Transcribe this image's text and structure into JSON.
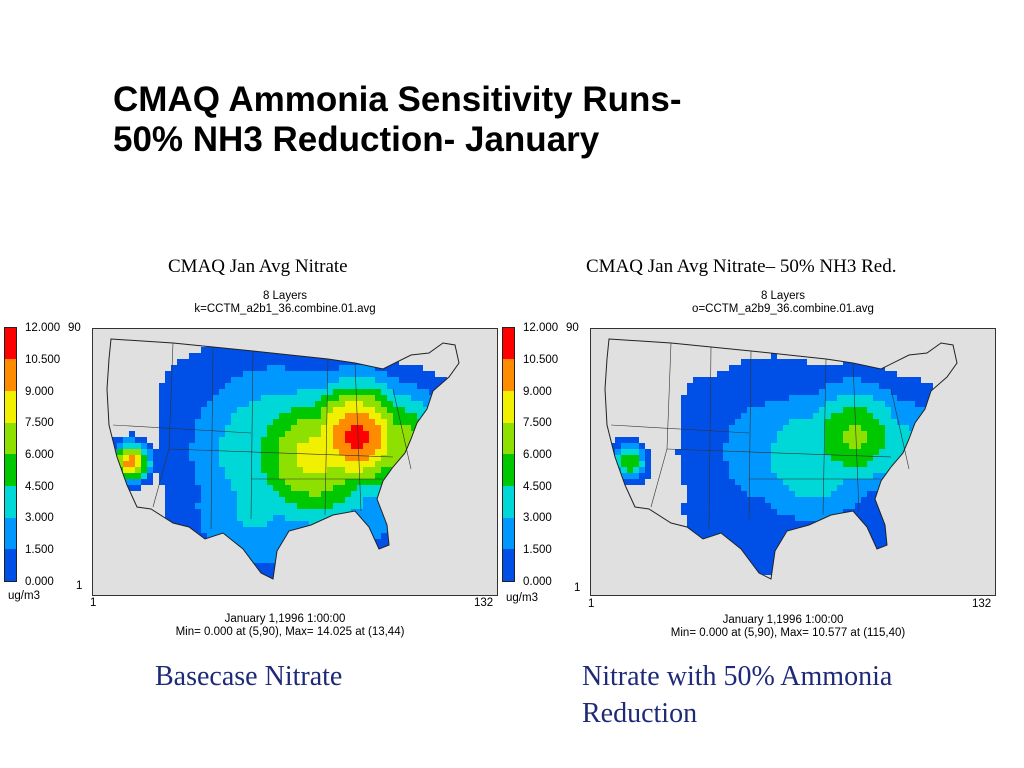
{
  "slide": {
    "title_line1": "CMAQ Ammonia Sensitivity Runs-",
    "title_line2": "50% NH3 Reduction- January"
  },
  "legend": {
    "unit": "ug/m3",
    "ticks": [
      "12.000",
      "10.500",
      "9.000",
      "7.500",
      "6.000",
      "4.500",
      "3.000",
      "1.500",
      "0.000"
    ],
    "colors": [
      "#ff0000",
      "#ff8c00",
      "#f0f000",
      "#8ee000",
      "#00c800",
      "#00d8d8",
      "#0098ff",
      "#0050e8",
      "#d8d8d8"
    ]
  },
  "axes": {
    "y_top": "90",
    "y_bottom": "1",
    "x_left": "1",
    "x_right": "132"
  },
  "maps": [
    {
      "title": "CMAQ Jan Avg Nitrate",
      "layers": "8 Layers",
      "file": "k=CCTM_a2b1_36.combine.01.avg",
      "date": "January 1,1996 1:00:00",
      "stats": "Min=   0.000 at (5,90), Max=  14.025 at (13,44)",
      "caption": "Basecase Nitrate",
      "intensity": 1.0
    },
    {
      "title": "CMAQ Jan Avg Nitrate– 50% NH3 Red.",
      "layers": "8 Layers",
      "file": "o=CCTM_a2b9_36.combine.01.avg",
      "date": "January 1,1996 1:00:00",
      "stats": "Min=   0.000 at (5,90), Max=  10.577 at (115,40)",
      "caption": "Nitrate with 50% Ammonia Reduction",
      "intensity": 0.62
    }
  ]
}
